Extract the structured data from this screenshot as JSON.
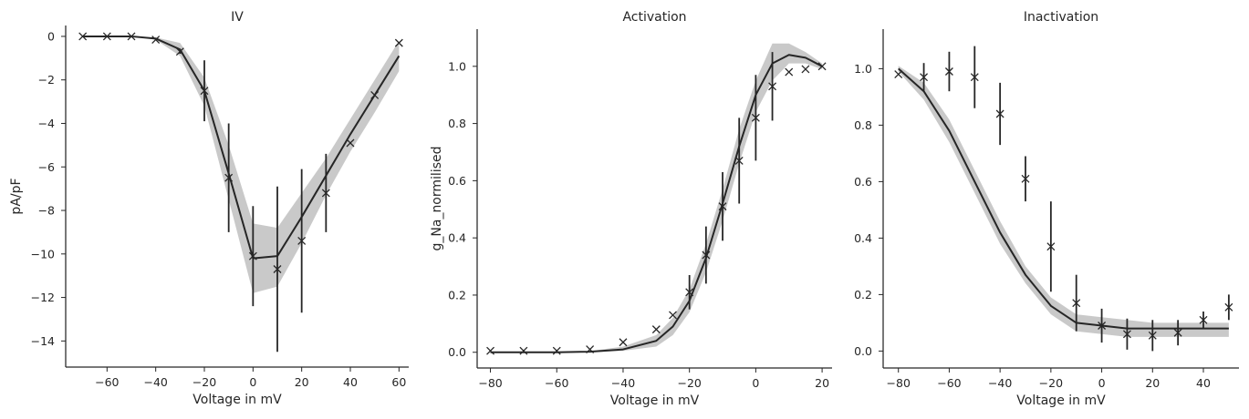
{
  "chart_data": [
    {
      "type": "line",
      "title": "IV",
      "xlabel": "Voltage in mV",
      "ylabel": "pA/pF",
      "xlim": [
        -77,
        64
      ],
      "ylim": [
        -15.2,
        0.5
      ],
      "xticks": [
        -60,
        -40,
        -20,
        0,
        20,
        40,
        60
      ],
      "yticks": [
        0,
        -2,
        -4,
        -6,
        -8,
        -10,
        -12,
        -14
      ],
      "xtick_labels": [
        "−60",
        "−40",
        "−20",
        "0",
        "20",
        "40",
        "60"
      ],
      "ytick_labels": [
        "0",
        "−2",
        "−4",
        "−6",
        "−8",
        "−10",
        "−12",
        "−14"
      ],
      "grid": false,
      "model": {
        "x": [
          -70,
          -60,
          -50,
          -40,
          -30,
          -20,
          -10,
          0,
          10,
          20,
          30,
          40,
          50,
          60
        ],
        "y": [
          0,
          0,
          0,
          -0.1,
          -0.6,
          -2.5,
          -6.3,
          -10.2,
          -10.1,
          -8.3,
          -6.4,
          -4.5,
          -2.7,
          -0.9
        ],
        "band_low": [
          0,
          0,
          0,
          -0.15,
          -0.9,
          -3.2,
          -7.5,
          -11.8,
          -11.5,
          -9.5,
          -7.3,
          -5.3,
          -3.5,
          -1.6
        ],
        "band_high": [
          0,
          0,
          0,
          -0.05,
          -0.3,
          -1.9,
          -5.0,
          -8.6,
          -8.8,
          -7.2,
          -5.6,
          -3.8,
          -2.0,
          -0.2
        ]
      },
      "experiment": {
        "x": [
          -70,
          -60,
          -50,
          -40,
          -30,
          -20,
          -10,
          0,
          10,
          20,
          30,
          40,
          50,
          60
        ],
        "y": [
          0,
          0,
          0,
          -0.15,
          -0.7,
          -2.5,
          -6.5,
          -10.1,
          -10.7,
          -9.4,
          -7.2,
          -4.9,
          -2.7,
          -0.3
        ],
        "err": [
          0,
          0,
          0,
          0,
          0.1,
          1.4,
          2.5,
          2.3,
          3.8,
          3.3,
          1.8,
          0,
          0,
          0
        ]
      }
    },
    {
      "type": "line",
      "title": "Activation",
      "xlabel": "Voltage in mV",
      "ylabel": "g_Na_normilised",
      "xlim": [
        -84,
        23
      ],
      "ylim": [
        -0.055,
        1.13
      ],
      "xticks": [
        -80,
        -60,
        -40,
        -20,
        0,
        20
      ],
      "yticks": [
        0.0,
        0.2,
        0.4,
        0.6,
        0.8,
        1.0
      ],
      "xtick_labels": [
        "−80",
        "−60",
        "−40",
        "−20",
        "0",
        "20"
      ],
      "ytick_labels": [
        "0.0",
        "0.2",
        "0.4",
        "0.6",
        "0.8",
        "1.0"
      ],
      "grid": false,
      "model": {
        "x": [
          -80,
          -70,
          -60,
          -50,
          -40,
          -30,
          -25,
          -20,
          -15,
          -10,
          -5,
          0,
          5,
          10,
          15,
          20
        ],
        "y": [
          0,
          0,
          0,
          0.002,
          0.01,
          0.04,
          0.09,
          0.18,
          0.33,
          0.52,
          0.72,
          0.9,
          1.01,
          1.04,
          1.03,
          1.0
        ],
        "band_low": [
          0,
          0,
          0,
          0,
          0.005,
          0.02,
          0.06,
          0.14,
          0.28,
          0.46,
          0.66,
          0.84,
          0.95,
          1.01,
          1.01,
          0.99
        ],
        "band_high": [
          0,
          0,
          0,
          0.004,
          0.02,
          0.06,
          0.12,
          0.22,
          0.38,
          0.57,
          0.78,
          0.95,
          1.08,
          1.08,
          1.05,
          1.01
        ]
      },
      "experiment": {
        "x": [
          -80,
          -70,
          -60,
          -50,
          -40,
          -30,
          -25,
          -20,
          -15,
          -10,
          -5,
          0,
          5,
          10,
          15,
          20
        ],
        "y": [
          0.005,
          0.005,
          0.005,
          0.01,
          0.035,
          0.08,
          0.13,
          0.21,
          0.34,
          0.51,
          0.67,
          0.82,
          0.93,
          0.98,
          0.99,
          1.0
        ],
        "err": [
          0,
          0,
          0,
          0,
          0,
          0,
          0,
          0.06,
          0.1,
          0.12,
          0.15,
          0.15,
          0.12,
          0,
          0,
          0
        ]
      }
    },
    {
      "type": "line",
      "title": "Inactivation",
      "xlabel": "Voltage in mV",
      "ylabel": "",
      "xlim": [
        -86,
        54
      ],
      "ylim": [
        -0.06,
        1.14
      ],
      "xticks": [
        -80,
        -60,
        -40,
        -20,
        0,
        20,
        40
      ],
      "yticks": [
        0.0,
        0.2,
        0.4,
        0.6,
        0.8,
        1.0
      ],
      "xtick_labels": [
        "−80",
        "−60",
        "−40",
        "−20",
        "0",
        "20",
        "40"
      ],
      "ytick_labels": [
        "0.0",
        "0.2",
        "0.4",
        "0.6",
        "0.8",
        "1.0"
      ],
      "grid": false,
      "model": {
        "x": [
          -80,
          -70,
          -60,
          -50,
          -40,
          -30,
          -20,
          -10,
          0,
          10,
          20,
          30,
          40,
          50
        ],
        "y": [
          1.0,
          0.92,
          0.78,
          0.6,
          0.42,
          0.27,
          0.16,
          0.1,
          0.09,
          0.08,
          0.08,
          0.08,
          0.08,
          0.08
        ],
        "band_low": [
          0.99,
          0.89,
          0.74,
          0.56,
          0.38,
          0.24,
          0.13,
          0.07,
          0.06,
          0.05,
          0.05,
          0.05,
          0.05,
          0.05
        ],
        "band_high": [
          1.01,
          0.95,
          0.82,
          0.64,
          0.46,
          0.3,
          0.19,
          0.13,
          0.12,
          0.11,
          0.1,
          0.1,
          0.1,
          0.1
        ]
      },
      "experiment": {
        "x": [
          -80,
          -70,
          -60,
          -50,
          -40,
          -30,
          -20,
          -10,
          0,
          10,
          20,
          30,
          40,
          50
        ],
        "y": [
          0.98,
          0.97,
          0.99,
          0.97,
          0.84,
          0.61,
          0.37,
          0.17,
          0.09,
          0.06,
          0.055,
          0.065,
          0.11,
          0.155
        ],
        "err": [
          0,
          0.05,
          0.07,
          0.11,
          0.11,
          0.08,
          0.16,
          0.1,
          0.06,
          0.055,
          0.055,
          0.045,
          0.03,
          0.045
        ]
      }
    }
  ],
  "colors": {
    "line": "#262626",
    "band": "#bfbfbf",
    "spine": "#262626",
    "text": "#262626"
  }
}
